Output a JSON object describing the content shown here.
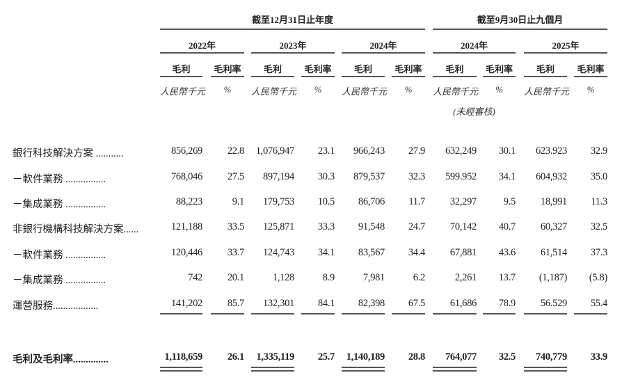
{
  "header": {
    "group_annual": "截至12月31日止年度",
    "group_nine_months": "截至9月30日止九個月",
    "years": [
      "2022年",
      "2023年",
      "2024年",
      "2024年",
      "2025年"
    ],
    "col_gross_profit": "毛利",
    "col_margin": "毛利率",
    "unit_currency": "人民幣千元",
    "unit_percent": "%",
    "unaudited": "(未經審核)"
  },
  "rows": [
    {
      "label": "銀行科技解決方案 ...........",
      "values": [
        "856,269",
        "22.8",
        "1,076,947",
        "23.1",
        "966,243",
        "27.9",
        "632,249",
        "30.1",
        "623.923",
        "32.9"
      ]
    },
    {
      "label": "－軟件業務 ................",
      "values": [
        "768,046",
        "27.5",
        "897,194",
        "30.3",
        "879,537",
        "32.3",
        "599.952",
        "34.1",
        "604,932",
        "35.0"
      ]
    },
    {
      "label": "－集成業務 ................",
      "values": [
        "88,223",
        "9.1",
        "179,753",
        "10.5",
        "86,706",
        "11.7",
        "32,297",
        "9.5",
        "18,991",
        "11.3"
      ]
    },
    {
      "label": "非銀行機構科技解決方案......",
      "values": [
        "121,188",
        "33.5",
        "125,871",
        "33.3",
        "91,548",
        "24.7",
        "70,142",
        "40.7",
        "60,327",
        "32.5"
      ]
    },
    {
      "label": "－軟件業務 ................",
      "values": [
        "120,446",
        "33.7",
        "124,743",
        "34.1",
        "83,567",
        "34.4",
        "67,881",
        "43.6",
        "61,514",
        "37.3"
      ]
    },
    {
      "label": "－集成業務 ................",
      "values": [
        "742",
        "20.1",
        "1,128",
        "8.9",
        "7,981",
        "6.2",
        "2,261",
        "13.7",
        "(1,187)",
        "(5.8)"
      ]
    },
    {
      "label": "運營服務..................",
      "values": [
        "141,202",
        "85.7",
        "132,301",
        "84.1",
        "82,398",
        "67.5",
        "61,686",
        "78.9",
        "56.529",
        "55.4"
      ]
    }
  ],
  "total": {
    "label": "毛利及毛利率..............",
    "values": [
      "1,118,659",
      "26.1",
      "1,335,119",
      "25.7",
      "1,140,189",
      "28.8",
      "764,077",
      "32.5",
      "740,779",
      "33.9"
    ]
  }
}
